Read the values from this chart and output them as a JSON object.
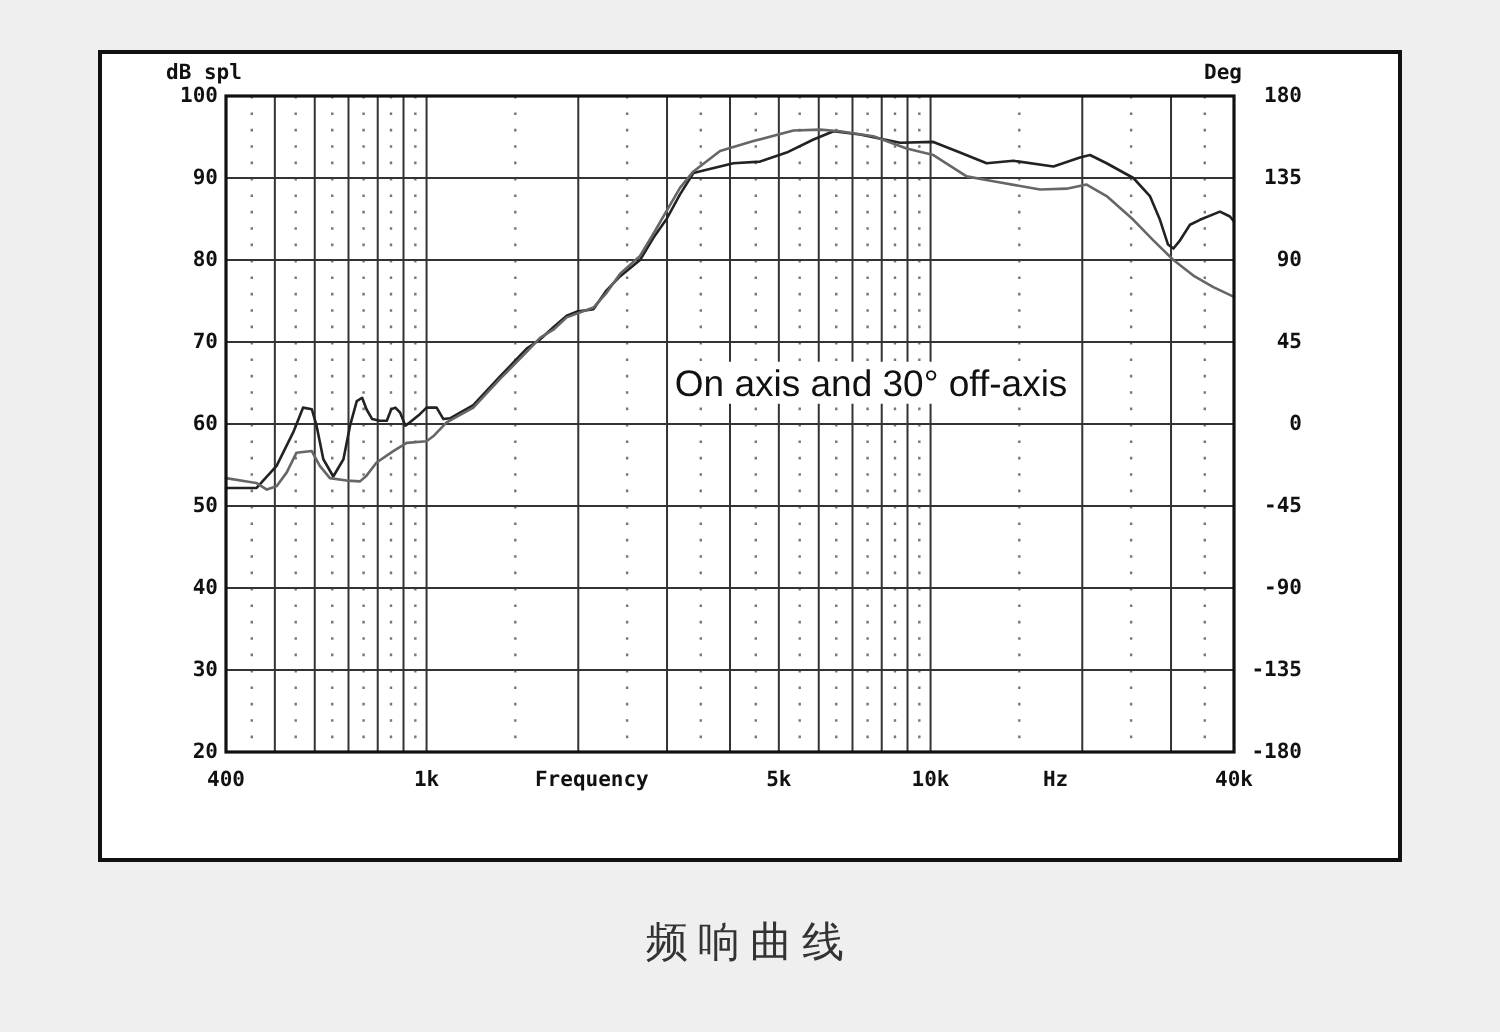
{
  "chart_data": {
    "type": "line",
    "title": "频响曲线",
    "xlabel": "Frequency",
    "ylabel": "dB spl",
    "y2label": "Deg",
    "annotations": [
      "On axis and 30° off-axis",
      "Hz"
    ],
    "log": "x",
    "grid": true,
    "line_style": "solid",
    "xlim": [
      400,
      40000
    ],
    "xticks": [
      400,
      {
        "value": 500,
        "label": null
      },
      {
        "value": 600,
        "label": null
      },
      {
        "value": 700,
        "label": null
      },
      {
        "value": 800,
        "label": null
      },
      {
        "value": 900,
        "label": null
      },
      {
        "value": 1000,
        "label": "1k"
      },
      {
        "value": 2000,
        "label": null
      },
      {
        "value": 3000,
        "label": null
      },
      {
        "value": 4000,
        "label": null
      },
      {
        "value": 5000,
        "label": "5k"
      },
      {
        "value": 6000,
        "label": null
      },
      {
        "value": 7000,
        "label": null
      },
      {
        "value": 8000,
        "label": null
      },
      {
        "value": 9000,
        "label": null
      },
      {
        "value": 10000,
        "label": "10k"
      },
      {
        "value": 20000,
        "label": null
      },
      {
        "value": 30000,
        "label": null
      },
      {
        "value": 40000,
        "label": "40k"
      }
    ],
    "ylim": [
      20,
      100
    ],
    "yticks": [
      20,
      30,
      40,
      50,
      60,
      70,
      80,
      90,
      100
    ],
    "y2lim": [
      -180,
      180
    ],
    "y2ticks": [
      -180,
      -135,
      -90,
      -45,
      0,
      45,
      90,
      135,
      180
    ],
    "series": [
      {
        "color": "#222222",
        "x": [
          400,
          460,
          504,
          544,
          569,
          592,
          605,
          624,
          653,
          684,
          705,
          727,
          745,
          760,
          780,
          808,
          834,
          851,
          867,
          886,
          908,
          927,
          970,
          1000,
          1047,
          1080,
          1113,
          1238,
          1399,
          1580,
          1679,
          1785,
          1897,
          1986,
          2143,
          2276,
          2419,
          2652,
          2819,
          2994,
          3183,
          3384,
          3594,
          4062,
          4588,
          5181,
          5857,
          6418,
          7245,
          8701,
          10130,
          11440,
          12920,
          14600,
          17530,
          19790,
          20720,
          22350,
          25260,
          27240,
          28520,
          29580,
          30330,
          31260,
          32710,
          34240,
          37510,
          39270,
          40000
        ],
        "values": [
          52.2,
          52.2,
          54.9,
          59,
          62,
          61.8,
          59.8,
          55.7,
          53.6,
          55.7,
          59.8,
          62.8,
          63.2,
          61.8,
          60.6,
          60.4,
          60.4,
          61.8,
          62,
          61.4,
          59.8,
          60.2,
          61.2,
          62,
          62,
          60.6,
          60.7,
          62.3,
          65.8,
          69.2,
          70.3,
          71.8,
          73.2,
          73.7,
          74,
          76.3,
          78,
          80,
          82.7,
          85,
          88,
          90.6,
          91,
          91.8,
          92,
          93.1,
          94.7,
          95.7,
          95.3,
          94.3,
          94.4,
          93.1,
          91.8,
          92.1,
          91.4,
          92.5,
          92.8,
          91.8,
          90,
          87.8,
          84.9,
          81.9,
          81.4,
          82.4,
          84.3,
          84.9,
          85.9,
          85.3,
          84.7
        ]
      },
      {
        "color": "#666666",
        "x": [
          400,
          460,
          482,
          504,
          528,
          552,
          592,
          614,
          643,
          694,
          738,
          760,
          796,
          859,
          913,
          1000,
          1031,
          1096,
          1238,
          1399,
          1580,
          1679,
          1785,
          1897,
          2143,
          2276,
          2419,
          2652,
          2819,
          2994,
          3183,
          3384,
          3822,
          4452,
          5345,
          6036,
          6613,
          7701,
          8964,
          10130,
          11790,
          13320,
          16490,
          18620,
          20400,
          22350,
          25260,
          27670,
          30330,
          33220,
          36400,
          40000
        ],
        "values": [
          53.4,
          52.8,
          52,
          52.4,
          54.1,
          56.5,
          56.7,
          54.9,
          53.4,
          53.1,
          53,
          53.7,
          55.3,
          56.7,
          57.7,
          57.9,
          58.5,
          60.2,
          62,
          65.5,
          68.8,
          70.5,
          71.5,
          73,
          74.2,
          76,
          78.3,
          80.5,
          83.2,
          86,
          88.8,
          90.8,
          93.3,
          94.5,
          95.8,
          95.9,
          95.7,
          95.1,
          93.6,
          92.8,
          90.2,
          89.6,
          88.6,
          88.7,
          89.2,
          87.8,
          84.9,
          82.4,
          80,
          78.1,
          76.7,
          75.5
        ]
      }
    ]
  }
}
